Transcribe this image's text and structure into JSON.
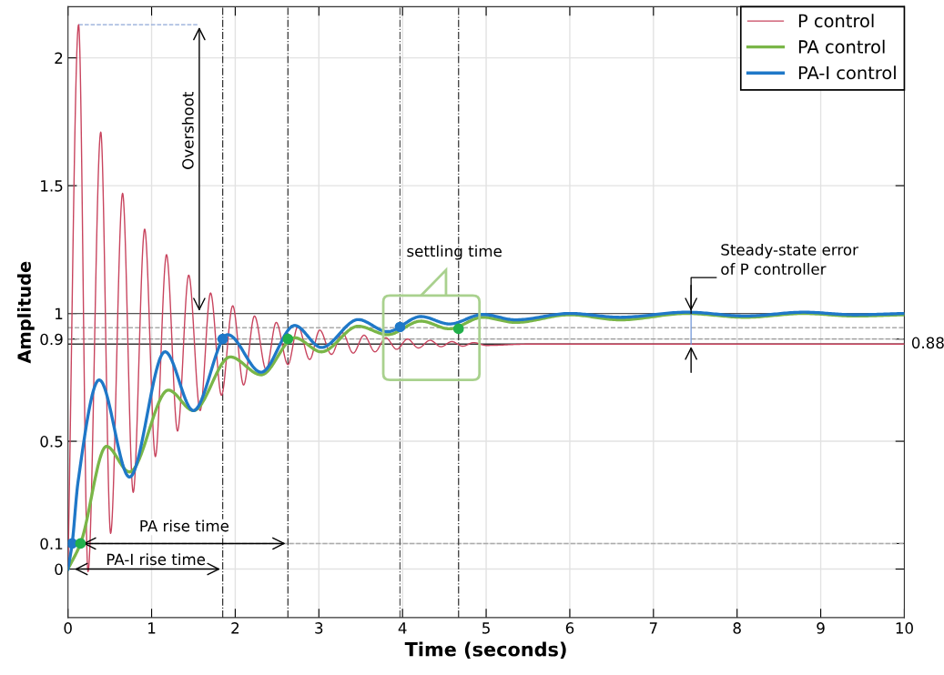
{
  "chart_data": {
    "type": "line",
    "xlabel": "Time (seconds)",
    "ylabel": "Amplitude",
    "xlim": [
      0,
      10
    ],
    "ylim": [
      -0.19,
      2.2
    ],
    "xticks": [
      0,
      1,
      2,
      3,
      4,
      5,
      6,
      7,
      8,
      9,
      10
    ],
    "yticks": [
      0,
      0.1,
      0.5,
      0.9,
      1,
      1.5,
      2
    ],
    "grid": true,
    "legend": "top right",
    "marker": "none",
    "line_style": "solid",
    "series": [
      {
        "name": "P control",
        "color": "#c8445e",
        "x": [
          0,
          0.127,
          0.24,
          0.392,
          0.51,
          0.653,
          0.78,
          0.917,
          1.045,
          1.178,
          1.31,
          1.444,
          1.58,
          1.705,
          1.835,
          1.97,
          2.1,
          2.23,
          2.37,
          2.49,
          2.63,
          2.75,
          2.89,
          3.01,
          3.15,
          3.28,
          3.41,
          3.54,
          3.67,
          3.8,
          3.93,
          4.06,
          4.19,
          4.33,
          4.46,
          4.59,
          4.72,
          4.85,
          5.0,
          5.5,
          10
        ],
        "values": [
          0,
          2.13,
          -0.01,
          1.71,
          0.14,
          1.47,
          0.3,
          1.33,
          0.44,
          1.23,
          0.54,
          1.15,
          0.62,
          1.08,
          0.68,
          1.03,
          0.72,
          0.99,
          0.78,
          0.965,
          0.8,
          0.95,
          0.82,
          0.935,
          0.84,
          0.925,
          0.845,
          0.915,
          0.85,
          0.905,
          0.86,
          0.9,
          0.865,
          0.895,
          0.87,
          0.89,
          0.872,
          0.886,
          0.875,
          0.88,
          0.88
        ]
      },
      {
        "name": "PA control",
        "color": "#7ab648",
        "x": [
          0,
          0.15,
          0.46,
          0.736,
          1.2,
          1.5,
          1.94,
          2.31,
          2.71,
          3.03,
          3.47,
          3.82,
          4.22,
          4.56,
          4.96,
          5.35,
          6.0,
          6.6,
          7.4,
          8.1,
          8.8,
          9.4,
          10
        ],
        "values": [
          0,
          0.1,
          0.48,
          0.38,
          0.7,
          0.62,
          0.83,
          0.76,
          0.905,
          0.85,
          0.95,
          0.917,
          0.97,
          0.94,
          0.985,
          0.965,
          0.995,
          0.975,
          1.0,
          0.985,
          1.0,
          0.99,
          0.995
        ]
      },
      {
        "name": "PA-I control",
        "color": "#1f78c8",
        "x": [
          0,
          0.05,
          0.12,
          0.374,
          0.736,
          1.16,
          1.5,
          1.91,
          2.31,
          2.71,
          3.03,
          3.47,
          3.82,
          4.22,
          4.56,
          4.96,
          5.35,
          6.0,
          6.6,
          7.4,
          8.1,
          8.8,
          9.4,
          10
        ],
        "values": [
          0,
          0.1,
          0.34,
          0.74,
          0.36,
          0.85,
          0.62,
          0.917,
          0.77,
          0.953,
          0.867,
          0.976,
          0.929,
          0.988,
          0.959,
          0.996,
          0.975,
          1.0,
          0.985,
          1.005,
          0.99,
          1.005,
          0.995,
          1.0
        ]
      },
      {
        "type": "scatter",
        "marker": "circle",
        "color": "#1f78c8",
        "x": [
          0.05,
          1.85,
          3.97
        ],
        "values": [
          0.1,
          0.9,
          0.947
        ]
      },
      {
        "type": "scatter",
        "marker": "circle",
        "color": "#22b04b",
        "x": [
          0.15,
          2.63,
          4.67
        ],
        "values": [
          0.1,
          0.9,
          0.94
        ]
      }
    ],
    "ref_lines": [
      {
        "axis": "y",
        "value": 1,
        "color": "#555555",
        "line_style": "solid"
      },
      {
        "axis": "y",
        "value": 0.88,
        "label": "0.88",
        "color": "#333333",
        "line_style": "solid"
      },
      {
        "axis": "y",
        "value": 0.9,
        "color": "#999999",
        "line_style": "dashed"
      },
      {
        "axis": "y",
        "value": 0.944,
        "color": "#aaaaaa",
        "line_style": "dashed"
      },
      {
        "axis": "y",
        "value": 0.1,
        "color": "#aaaaaa",
        "line_style": "dashed"
      },
      {
        "axis": "x",
        "value": 1.85,
        "color": "#333333",
        "line_style": "dashdot"
      },
      {
        "axis": "x",
        "value": 2.63,
        "color": "#333333",
        "line_style": "dashdot"
      },
      {
        "axis": "x",
        "value": 3.97,
        "color": "#555555",
        "line_style": "dashdot"
      },
      {
        "axis": "x",
        "value": 4.67,
        "color": "#333333",
        "line_style": "dashdot"
      }
    ],
    "annotations": [
      "Overshoot",
      "PA rise time",
      "PA-I rise time",
      "settling time",
      "Steady-state error\nof P controller"
    ]
  }
}
